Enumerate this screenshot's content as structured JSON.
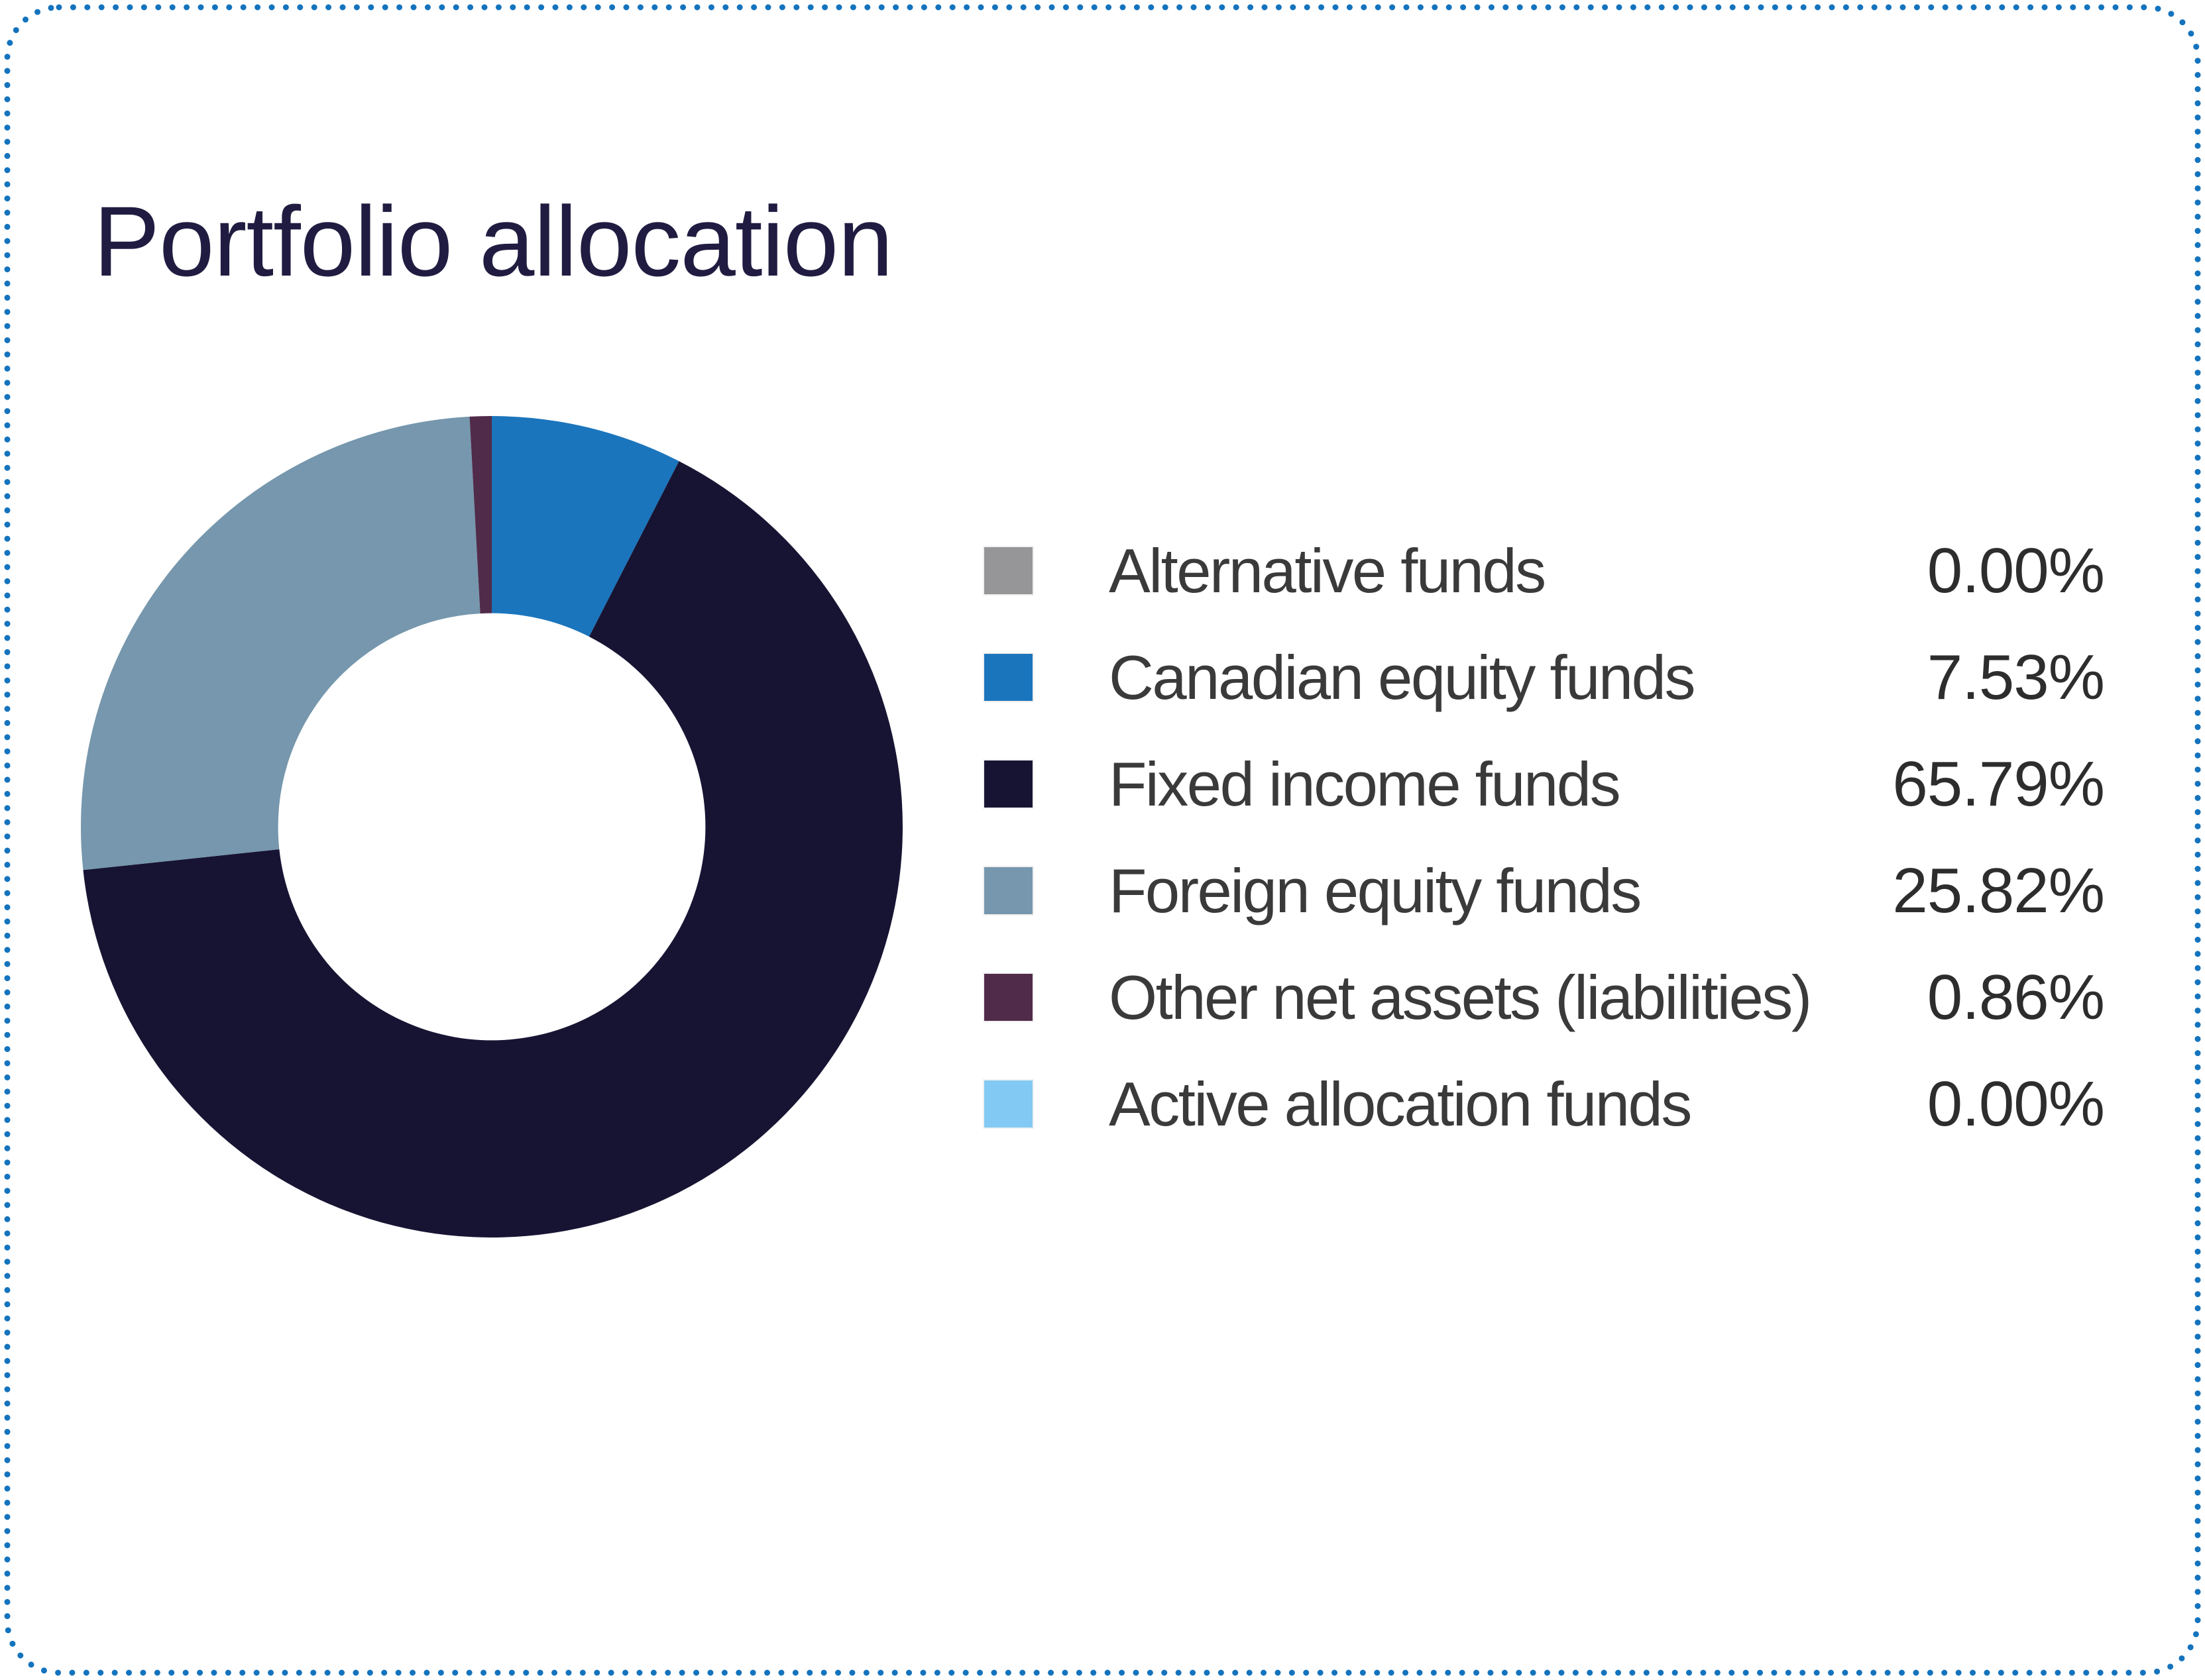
{
  "page": {
    "background": "#ffffff",
    "border_dot_color": "#1473bd"
  },
  "header": {
    "title": "Portfolio allocation",
    "title_color": "#201c41"
  },
  "chart_data": {
    "type": "pie",
    "subtype": "donut",
    "title": "Portfolio allocation",
    "hole_ratio": 0.52,
    "start_angle_deg_from_top": 0,
    "direction": "clockwise",
    "legend_position": "right",
    "label_color": "#3a3a3a",
    "value_color": "#2d2d2d",
    "segments": [
      {
        "label": "Alternative funds",
        "value": 0.0,
        "display": "0.00%",
        "color": "#969698"
      },
      {
        "label": "Canadian equity funds",
        "value": 7.53,
        "display": "7.53%",
        "color": "#1b75bc"
      },
      {
        "label": "Fixed income funds",
        "value": 65.79,
        "display": "65.79%",
        "color": "#171433"
      },
      {
        "label": "Foreign equity funds",
        "value": 25.82,
        "display": "25.82%",
        "color": "#7697ad"
      },
      {
        "label": "Other net assets (liabilities)",
        "value": 0.86,
        "display": "0.86%",
        "color": "#512b4a"
      },
      {
        "label": "Active allocation funds",
        "value": 0.0,
        "display": "0.00%",
        "color": "#82caf3"
      }
    ]
  }
}
